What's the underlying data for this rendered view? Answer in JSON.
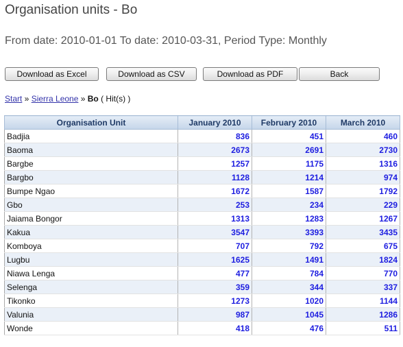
{
  "header": {
    "title": "Organisation units - Bo",
    "period": "From date: 2010-01-01 To date: 2010-03-31, Period Type: Monthly"
  },
  "toolbar": {
    "excel_label": "Download as Excel",
    "csv_label": "Download as CSV",
    "pdf_label": "Download as PDF",
    "back_label": "Back"
  },
  "breadcrumb": {
    "start": "Start",
    "sep1": " » ",
    "country": "Sierra Leone",
    "sep2": " » ",
    "current": "Bo",
    "hits": " ( Hit(s) )"
  },
  "table": {
    "columns": [
      "Organisation Unit",
      "January 2010",
      "February 2010",
      "March 2010"
    ],
    "rows": [
      {
        "unit": "Badjia",
        "jan": "836",
        "feb": "451",
        "mar": "460"
      },
      {
        "unit": "Baoma",
        "jan": "2673",
        "feb": "2691",
        "mar": "2730"
      },
      {
        "unit": "Bargbe",
        "jan": "1257",
        "feb": "1175",
        "mar": "1316"
      },
      {
        "unit": "Bargbo",
        "jan": "1128",
        "feb": "1214",
        "mar": "974"
      },
      {
        "unit": "Bumpe Ngao",
        "jan": "1672",
        "feb": "1587",
        "mar": "1792"
      },
      {
        "unit": "Gbo",
        "jan": "253",
        "feb": "234",
        "mar": "229"
      },
      {
        "unit": "Jaiama Bongor",
        "jan": "1313",
        "feb": "1283",
        "mar": "1267"
      },
      {
        "unit": "Kakua",
        "jan": "3547",
        "feb": "3393",
        "mar": "3435"
      },
      {
        "unit": "Komboya",
        "jan": "707",
        "feb": "792",
        "mar": "675"
      },
      {
        "unit": "Lugbu",
        "jan": "1625",
        "feb": "1491",
        "mar": "1824"
      },
      {
        "unit": "Niawa Lenga",
        "jan": "477",
        "feb": "784",
        "mar": "770"
      },
      {
        "unit": "Selenga",
        "jan": "359",
        "feb": "344",
        "mar": "337"
      },
      {
        "unit": "Tikonko",
        "jan": "1273",
        "feb": "1020",
        "mar": "1144"
      },
      {
        "unit": "Valunia",
        "jan": "987",
        "feb": "1045",
        "mar": "1286"
      },
      {
        "unit": "Wonde",
        "jan": "418",
        "feb": "476",
        "mar": "511"
      }
    ]
  },
  "colors": {
    "value_text": "#1d1de0",
    "header_bg": "#c5d6ea",
    "row_stripe": "#eaf0f8",
    "link": "#3333aa"
  }
}
